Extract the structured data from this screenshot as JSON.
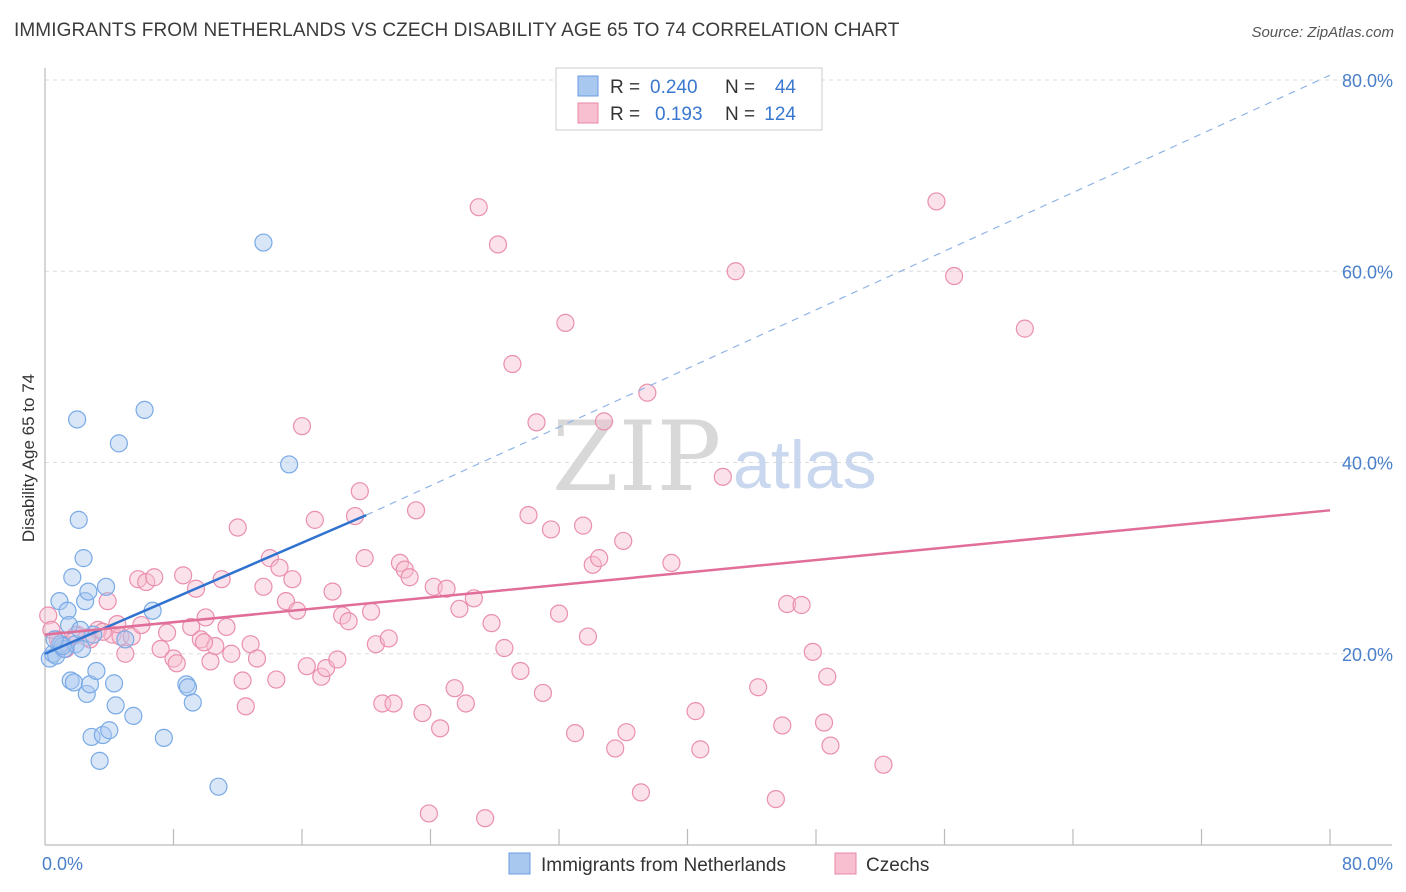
{
  "title": "IMMIGRANTS FROM NETHERLANDS VS CZECH DISABILITY AGE 65 TO 74 CORRELATION CHART",
  "source": "Source: ZipAtlas.com",
  "watermark": {
    "zip": "ZIP",
    "atlas": "atlas"
  },
  "legend": {
    "r_label": "R =",
    "n_label": "N =",
    "rows": [
      {
        "r": "0.240",
        "n": "44",
        "color": "#a9c8f0",
        "stroke": "#6a9be0"
      },
      {
        "r": "0.193",
        "n": "124",
        "color": "#f7bfd0",
        "stroke": "#e88aa8"
      }
    ]
  },
  "chart_data": {
    "type": "scatter",
    "title": "IMMIGRANTS FROM NETHERLANDS VS CZECH DISABILITY AGE 65 TO 74 CORRELATION CHART",
    "xlabel": "",
    "ylabel": "Disability Age 65 to 74",
    "xlim": [
      0,
      80
    ],
    "ylim": [
      0,
      80
    ],
    "x_tick_labels": [
      "0.0%",
      "80.0%"
    ],
    "y_tick_labels": [
      "20.0%",
      "40.0%",
      "60.0%",
      "80.0%"
    ],
    "y_ticks": [
      20,
      40,
      60,
      80
    ],
    "grid": true,
    "legend_position": "bottom",
    "series": [
      {
        "name": "Immigrants from Netherlands",
        "color": "#7aaae6",
        "fill": "rgba(169,200,240,0.45)",
        "trend": {
          "x0": 0,
          "y0": 20.0,
          "x1": 20.0,
          "y1": 34.5,
          "dash_to_x": 80,
          "dash_to_y": 80.5
        },
        "points": [
          [
            0.3,
            19.5
          ],
          [
            0.5,
            20.0
          ],
          [
            0.7,
            19.8
          ],
          [
            0.9,
            25.5
          ],
          [
            1.0,
            21.0
          ],
          [
            1.2,
            20.5
          ],
          [
            1.4,
            24.5
          ],
          [
            1.5,
            23.0
          ],
          [
            1.6,
            17.2
          ],
          [
            1.7,
            28.0
          ],
          [
            1.8,
            17.0
          ],
          [
            1.9,
            21.0
          ],
          [
            2.0,
            44.5
          ],
          [
            2.1,
            34.0
          ],
          [
            2.3,
            20.5
          ],
          [
            2.4,
            30.0
          ],
          [
            2.5,
            25.5
          ],
          [
            2.6,
            15.8
          ],
          [
            2.7,
            26.5
          ],
          [
            2.8,
            16.8
          ],
          [
            2.9,
            11.3
          ],
          [
            3.0,
            22.0
          ],
          [
            3.2,
            18.2
          ],
          [
            3.4,
            8.8
          ],
          [
            3.6,
            11.5
          ],
          [
            3.8,
            27.0
          ],
          [
            4.0,
            12.0
          ],
          [
            4.3,
            16.9
          ],
          [
            4.4,
            14.6
          ],
          [
            4.6,
            42.0
          ],
          [
            5.0,
            21.5
          ],
          [
            5.5,
            13.5
          ],
          [
            6.2,
            45.5
          ],
          [
            6.7,
            24.5
          ],
          [
            7.4,
            11.2
          ],
          [
            8.8,
            16.8
          ],
          [
            8.9,
            16.5
          ],
          [
            9.2,
            14.9
          ],
          [
            10.8,
            6.1
          ],
          [
            13.6,
            63.0
          ],
          [
            15.2,
            39.8
          ],
          [
            1.1,
            20.8
          ],
          [
            2.2,
            22.5
          ],
          [
            0.6,
            21.5
          ]
        ]
      },
      {
        "name": "Czechs",
        "color": "#ea8fae",
        "fill": "rgba(247,191,208,0.45)",
        "trend": {
          "x0": 0,
          "y0": 22.0,
          "x1": 80,
          "y1": 35.0
        },
        "points": [
          [
            0.2,
            24.0
          ],
          [
            0.4,
            22.5
          ],
          [
            0.8,
            21.5
          ],
          [
            1.3,
            20.5
          ],
          [
            2.0,
            22.0
          ],
          [
            2.8,
            21.5
          ],
          [
            3.3,
            22.5
          ],
          [
            3.9,
            25.5
          ],
          [
            4.2,
            22.0
          ],
          [
            4.7,
            21.8
          ],
          [
            5.0,
            20.0
          ],
          [
            5.4,
            21.8
          ],
          [
            5.8,
            27.8
          ],
          [
            6.3,
            27.5
          ],
          [
            6.8,
            28.0
          ],
          [
            7.2,
            20.5
          ],
          [
            7.6,
            22.2
          ],
          [
            8.0,
            19.5
          ],
          [
            8.2,
            19.0
          ],
          [
            8.6,
            28.2
          ],
          [
            9.1,
            22.8
          ],
          [
            9.4,
            26.8
          ],
          [
            9.7,
            21.5
          ],
          [
            10.0,
            23.8
          ],
          [
            10.3,
            19.2
          ],
          [
            10.6,
            20.8
          ],
          [
            11.0,
            27.8
          ],
          [
            11.3,
            22.8
          ],
          [
            11.6,
            20.0
          ],
          [
            12.0,
            33.2
          ],
          [
            12.3,
            17.2
          ],
          [
            12.5,
            14.5
          ],
          [
            12.8,
            21.0
          ],
          [
            13.2,
            19.5
          ],
          [
            13.6,
            27.0
          ],
          [
            14.0,
            30.0
          ],
          [
            14.4,
            17.3
          ],
          [
            14.6,
            29.0
          ],
          [
            15.0,
            25.5
          ],
          [
            15.4,
            27.8
          ],
          [
            15.7,
            24.5
          ],
          [
            16.0,
            43.8
          ],
          [
            16.3,
            18.7
          ],
          [
            16.8,
            34.0
          ],
          [
            17.2,
            17.6
          ],
          [
            17.5,
            18.5
          ],
          [
            17.9,
            26.5
          ],
          [
            18.2,
            19.4
          ],
          [
            18.5,
            24.0
          ],
          [
            18.9,
            23.4
          ],
          [
            19.3,
            34.4
          ],
          [
            19.6,
            37.0
          ],
          [
            19.9,
            30.0
          ],
          [
            20.3,
            24.4
          ],
          [
            20.6,
            21.0
          ],
          [
            21.0,
            14.8
          ],
          [
            21.4,
            21.6
          ],
          [
            21.7,
            14.8
          ],
          [
            22.1,
            29.5
          ],
          [
            22.4,
            28.8
          ],
          [
            22.7,
            28.0
          ],
          [
            23.1,
            35.0
          ],
          [
            23.5,
            13.8
          ],
          [
            23.9,
            3.3
          ],
          [
            24.2,
            27.0
          ],
          [
            24.6,
            12.2
          ],
          [
            25.0,
            26.8
          ],
          [
            25.5,
            16.4
          ],
          [
            25.8,
            24.7
          ],
          [
            26.2,
            14.8
          ],
          [
            26.7,
            25.8
          ],
          [
            27.0,
            66.7
          ],
          [
            27.4,
            2.8
          ],
          [
            27.8,
            23.2
          ],
          [
            28.2,
            62.8
          ],
          [
            28.6,
            20.6
          ],
          [
            29.1,
            50.3
          ],
          [
            29.6,
            18.2
          ],
          [
            30.1,
            34.5
          ],
          [
            30.6,
            44.2
          ],
          [
            31.0,
            15.9
          ],
          [
            31.5,
            33.0
          ],
          [
            32.0,
            24.2
          ],
          [
            32.4,
            54.6
          ],
          [
            33.0,
            11.7
          ],
          [
            33.5,
            33.4
          ],
          [
            33.8,
            21.8
          ],
          [
            34.1,
            29.3
          ],
          [
            34.5,
            30.0
          ],
          [
            34.8,
            44.3
          ],
          [
            35.5,
            10.1
          ],
          [
            36.0,
            31.8
          ],
          [
            36.2,
            11.8
          ],
          [
            37.1,
            5.5
          ],
          [
            37.5,
            47.3
          ],
          [
            39.0,
            29.5
          ],
          [
            40.5,
            14.0
          ],
          [
            40.8,
            10.0
          ],
          [
            42.2,
            38.5
          ],
          [
            43.0,
            60.0
          ],
          [
            44.4,
            16.5
          ],
          [
            45.5,
            4.8
          ],
          [
            45.9,
            12.5
          ],
          [
            46.2,
            25.2
          ],
          [
            47.1,
            25.1
          ],
          [
            47.8,
            20.2
          ],
          [
            48.5,
            12.8
          ],
          [
            48.7,
            17.6
          ],
          [
            48.9,
            10.4
          ],
          [
            52.2,
            8.4
          ],
          [
            55.5,
            67.3
          ],
          [
            56.6,
            59.5
          ],
          [
            61.0,
            54.0
          ],
          [
            0.9,
            21.0
          ],
          [
            1.9,
            21.9
          ],
          [
            2.6,
            21.7
          ],
          [
            3.6,
            22.3
          ],
          [
            4.5,
            23.1
          ],
          [
            6.0,
            23.0
          ],
          [
            9.9,
            21.2
          ]
        ]
      }
    ]
  },
  "bottom_legend": [
    {
      "label": "Immigrants from Netherlands",
      "color": "#a9c8f0",
      "stroke": "#6a9be0"
    },
    {
      "label": "Czechs",
      "color": "#f7bfd0",
      "stroke": "#e88aa8"
    }
  ]
}
